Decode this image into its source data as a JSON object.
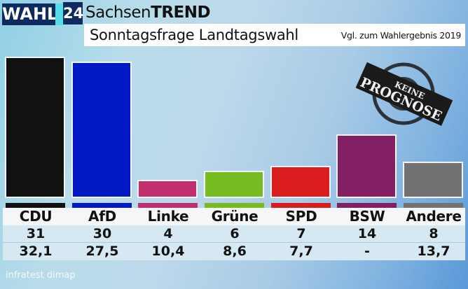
{
  "header": {
    "brand": "WAHL",
    "brand_number": "24",
    "title_regular": "Sachsen",
    "title_bold": "TREND",
    "subtitle": "Sonntagsfrage Landtagswahl",
    "comparison_note": "Vgl. zum Wahlergebnis 2019"
  },
  "stamp": {
    "line1": "KEINE",
    "line2": "PROGNOSE"
  },
  "source": "infratest dimap",
  "parties": [
    {
      "name": "CDU",
      "seats": "31",
      "prev": "32,1",
      "color": "#111111"
    },
    {
      "name": "AfD",
      "seats": "30",
      "prev": "27,5",
      "color": "#0019c4"
    },
    {
      "name": "Linke",
      "seats": "4",
      "prev": "10,4",
      "color": "#c0306e"
    },
    {
      "name": "Grüne",
      "seats": "6",
      "prev": "8,6",
      "color": "#76bb1f"
    },
    {
      "name": "SPD",
      "seats": "7",
      "prev": "7,7",
      "color": "#d91c1c"
    },
    {
      "name": "BSW",
      "seats": "14",
      "prev": "-",
      "color": "#851f63"
    },
    {
      "name": "Andere",
      "seats": "8",
      "prev": "13,7",
      "color": "#737171"
    }
  ],
  "chart_data": {
    "type": "bar",
    "title": "SachsenTREND – Sonntagsfrage Landtagswahl",
    "subtitle": "Vgl. zum Wahlergebnis 2019",
    "categories": [
      "CDU",
      "AfD",
      "Linke",
      "Grüne",
      "SPD",
      "BSW",
      "Andere"
    ],
    "series": [
      {
        "name": "Sonntagsfrage (%)",
        "values": [
          31,
          30,
          4,
          6,
          7,
          14,
          8
        ]
      },
      {
        "name": "Wahlergebnis 2019 (%)",
        "values": [
          32.1,
          27.5,
          10.4,
          8.6,
          7.7,
          null,
          13.7
        ]
      }
    ],
    "colors": [
      "#111111",
      "#0019c4",
      "#c0306e",
      "#76bb1f",
      "#d91c1c",
      "#851f63",
      "#737171"
    ],
    "xlabel": "",
    "ylabel": "",
    "ylim": [
      0,
      31
    ],
    "grid": false,
    "legend": "none",
    "annotations": [
      "KEINE PROGNOSE"
    ],
    "source": "infratest dimap"
  }
}
